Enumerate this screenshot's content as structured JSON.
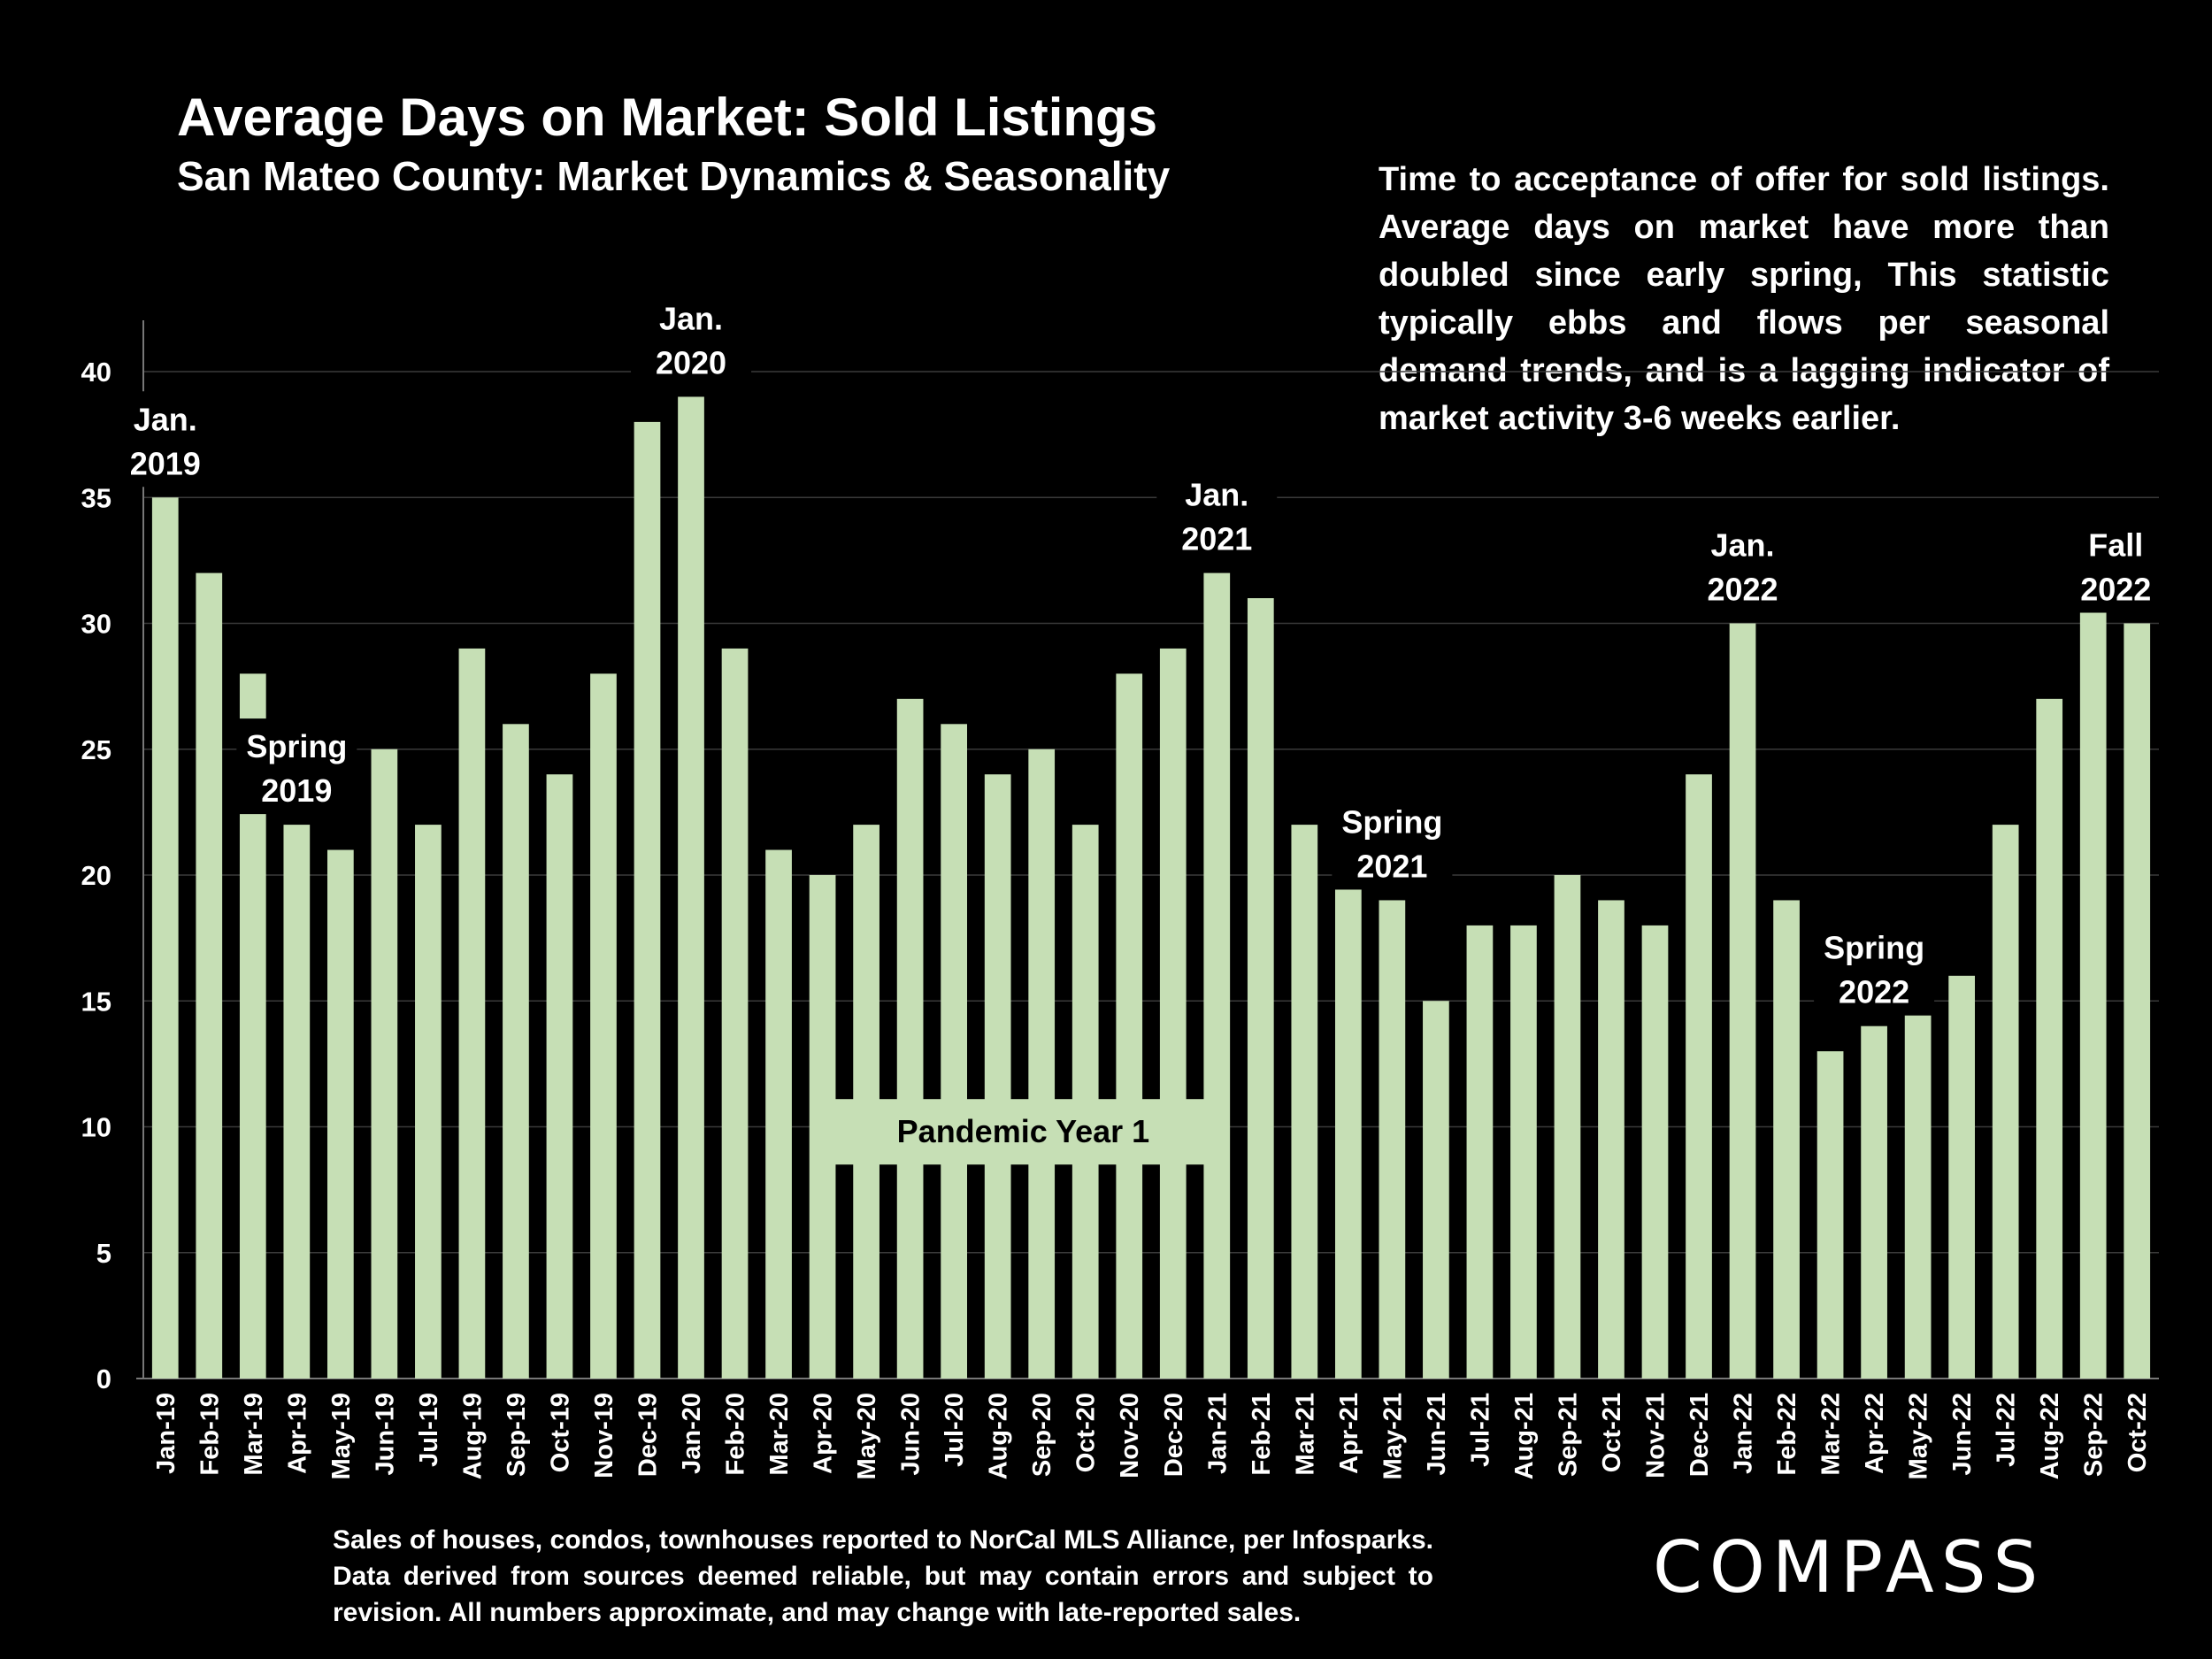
{
  "header": {
    "title": "Average Days on Market: Sold Listings",
    "subtitle": "San Mateo County: Market Dynamics & Seasonality"
  },
  "description": "Time to acceptance of offer for sold listings. Average days on market have more than doubled since early spring, This statistic typically ebbs and flows per seasonal demand trends, and is a lagging indicator of market activity 3-6 weeks earlier.",
  "footer": {
    "source_note": "Sales of houses, condos, townhouses reported to NorCal MLS Alliance, per Infosparks. Data derived from sources deemed reliable, but may contain errors and subject to revision. All numbers approximate, and may change with late-reported sales.",
    "logo_text": "COMPASS"
  },
  "colors": {
    "background": "#000000",
    "bar": "#c6dfb5",
    "text": "#ffffff",
    "grid": "#3a3a3a",
    "band_fill": "#c6dfb5",
    "band_text": "#000000"
  },
  "chart_data": {
    "type": "bar",
    "title": "Average Days on Market: Sold Listings",
    "subtitle": "San Mateo County: Market Dynamics & Seasonality",
    "xlabel": "",
    "ylabel": "",
    "ylim": [
      0,
      40
    ],
    "yticks": [
      0,
      5,
      10,
      15,
      20,
      25,
      30,
      35,
      40
    ],
    "grid": true,
    "categories": [
      "Jan-19",
      "Feb-19",
      "Mar-19",
      "Apr-19",
      "May-19",
      "Jun-19",
      "Jul-19",
      "Aug-19",
      "Sep-19",
      "Oct-19",
      "Nov-19",
      "Dec-19",
      "Jan-20",
      "Feb-20",
      "Mar-20",
      "Apr-20",
      "May-20",
      "Jun-20",
      "Jul-20",
      "Aug-20",
      "Sep-20",
      "Oct-20",
      "Nov-20",
      "Dec-20",
      "Jan-21",
      "Feb-21",
      "Mar-21",
      "Apr-21",
      "May-21",
      "Jun-21",
      "Jul-21",
      "Aug-21",
      "Sep-21",
      "Oct-21",
      "Nov-21",
      "Dec-21",
      "Jan-22",
      "Feb-22",
      "Mar-22",
      "Apr-22",
      "May-22",
      "Jun-22",
      "Jul-22",
      "Aug-22",
      "Sep-22",
      "Oct-22"
    ],
    "values": [
      35,
      32,
      28,
      22,
      21,
      25,
      22,
      29,
      26,
      24,
      28,
      38,
      39,
      29,
      21,
      20,
      22,
      27,
      26,
      24,
      25,
      22,
      28,
      29,
      32,
      31,
      22,
      21,
      19,
      15,
      18,
      18,
      20,
      19,
      18,
      24,
      30,
      19,
      13,
      14,
      16,
      16,
      22,
      27,
      31,
      30
    ],
    "annotations": [
      {
        "text": [
          "Jan.",
          "2019"
        ],
        "category": "Jan-19"
      },
      {
        "text": [
          "Spring",
          "2019"
        ],
        "category": "Apr-19"
      },
      {
        "text": [
          "Jan.",
          "2020"
        ],
        "category": "Jan-20"
      },
      {
        "text": [
          "Jan.",
          "2021"
        ],
        "category": "Jan-21"
      },
      {
        "text": [
          "Spring",
          "2021"
        ],
        "category": "May-21"
      },
      {
        "text": [
          "Jan.",
          "2022"
        ],
        "category": "Jan-22"
      },
      {
        "text": [
          "Spring",
          "2022"
        ],
        "category": "Apr-22"
      },
      {
        "text": [
          "Fall",
          "2022"
        ],
        "category": "Oct-22"
      }
    ],
    "band": {
      "label": "Pandemic Year 1",
      "from": "Apr-20",
      "to": "Jan-21",
      "value_range": [
        8.5,
        11.1
      ]
    }
  }
}
